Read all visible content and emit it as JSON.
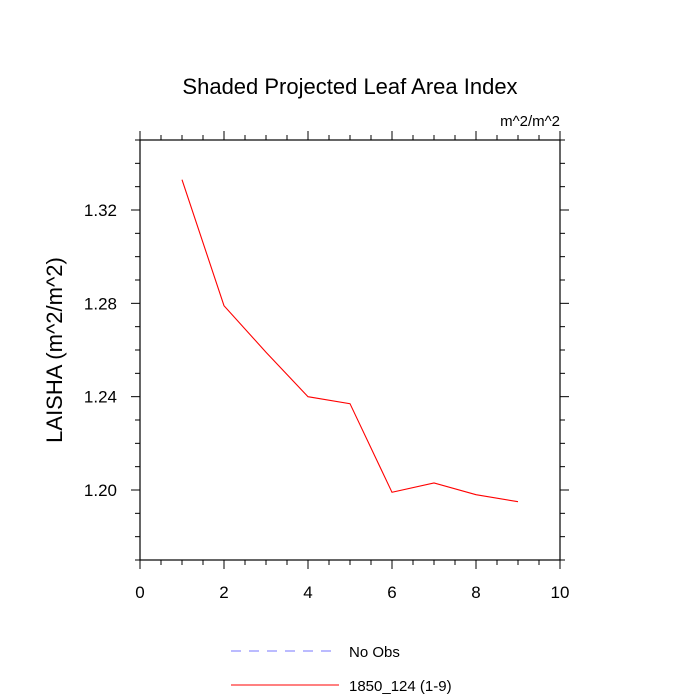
{
  "chart_data": {
    "type": "line",
    "title": "Shaded Projected Leaf Area Index",
    "units_label": "m^2/m^2",
    "ylabel": "LAISHA  (m^2/m^2)",
    "xlabel": "",
    "xlim": [
      0,
      10
    ],
    "ylim": [
      1.17,
      1.35
    ],
    "x_ticks": [
      0,
      2,
      4,
      6,
      8,
      10
    ],
    "x_tick_labels": [
      "0",
      "2",
      "4",
      "6",
      "8",
      "10"
    ],
    "y_ticks": [
      1.2,
      1.24,
      1.28,
      1.32
    ],
    "y_tick_labels": [
      "1.20",
      "1.24",
      "1.28",
      "1.32"
    ],
    "grid": false,
    "legend_position": "bottom",
    "series": [
      {
        "name": "1850_124 (1-9)",
        "color": "#ff0000",
        "style": "solid",
        "x": [
          1,
          2,
          3,
          4,
          5,
          6,
          7,
          8,
          9
        ],
        "y": [
          1.333,
          1.279,
          1.259,
          1.24,
          1.237,
          1.199,
          1.203,
          1.198,
          1.195
        ]
      }
    ],
    "legend": [
      {
        "label": "No Obs",
        "color": "#7777ff",
        "style": "dashed"
      },
      {
        "label": "1850_124 (1-9)",
        "color": "#ff0000",
        "style": "solid"
      }
    ]
  }
}
